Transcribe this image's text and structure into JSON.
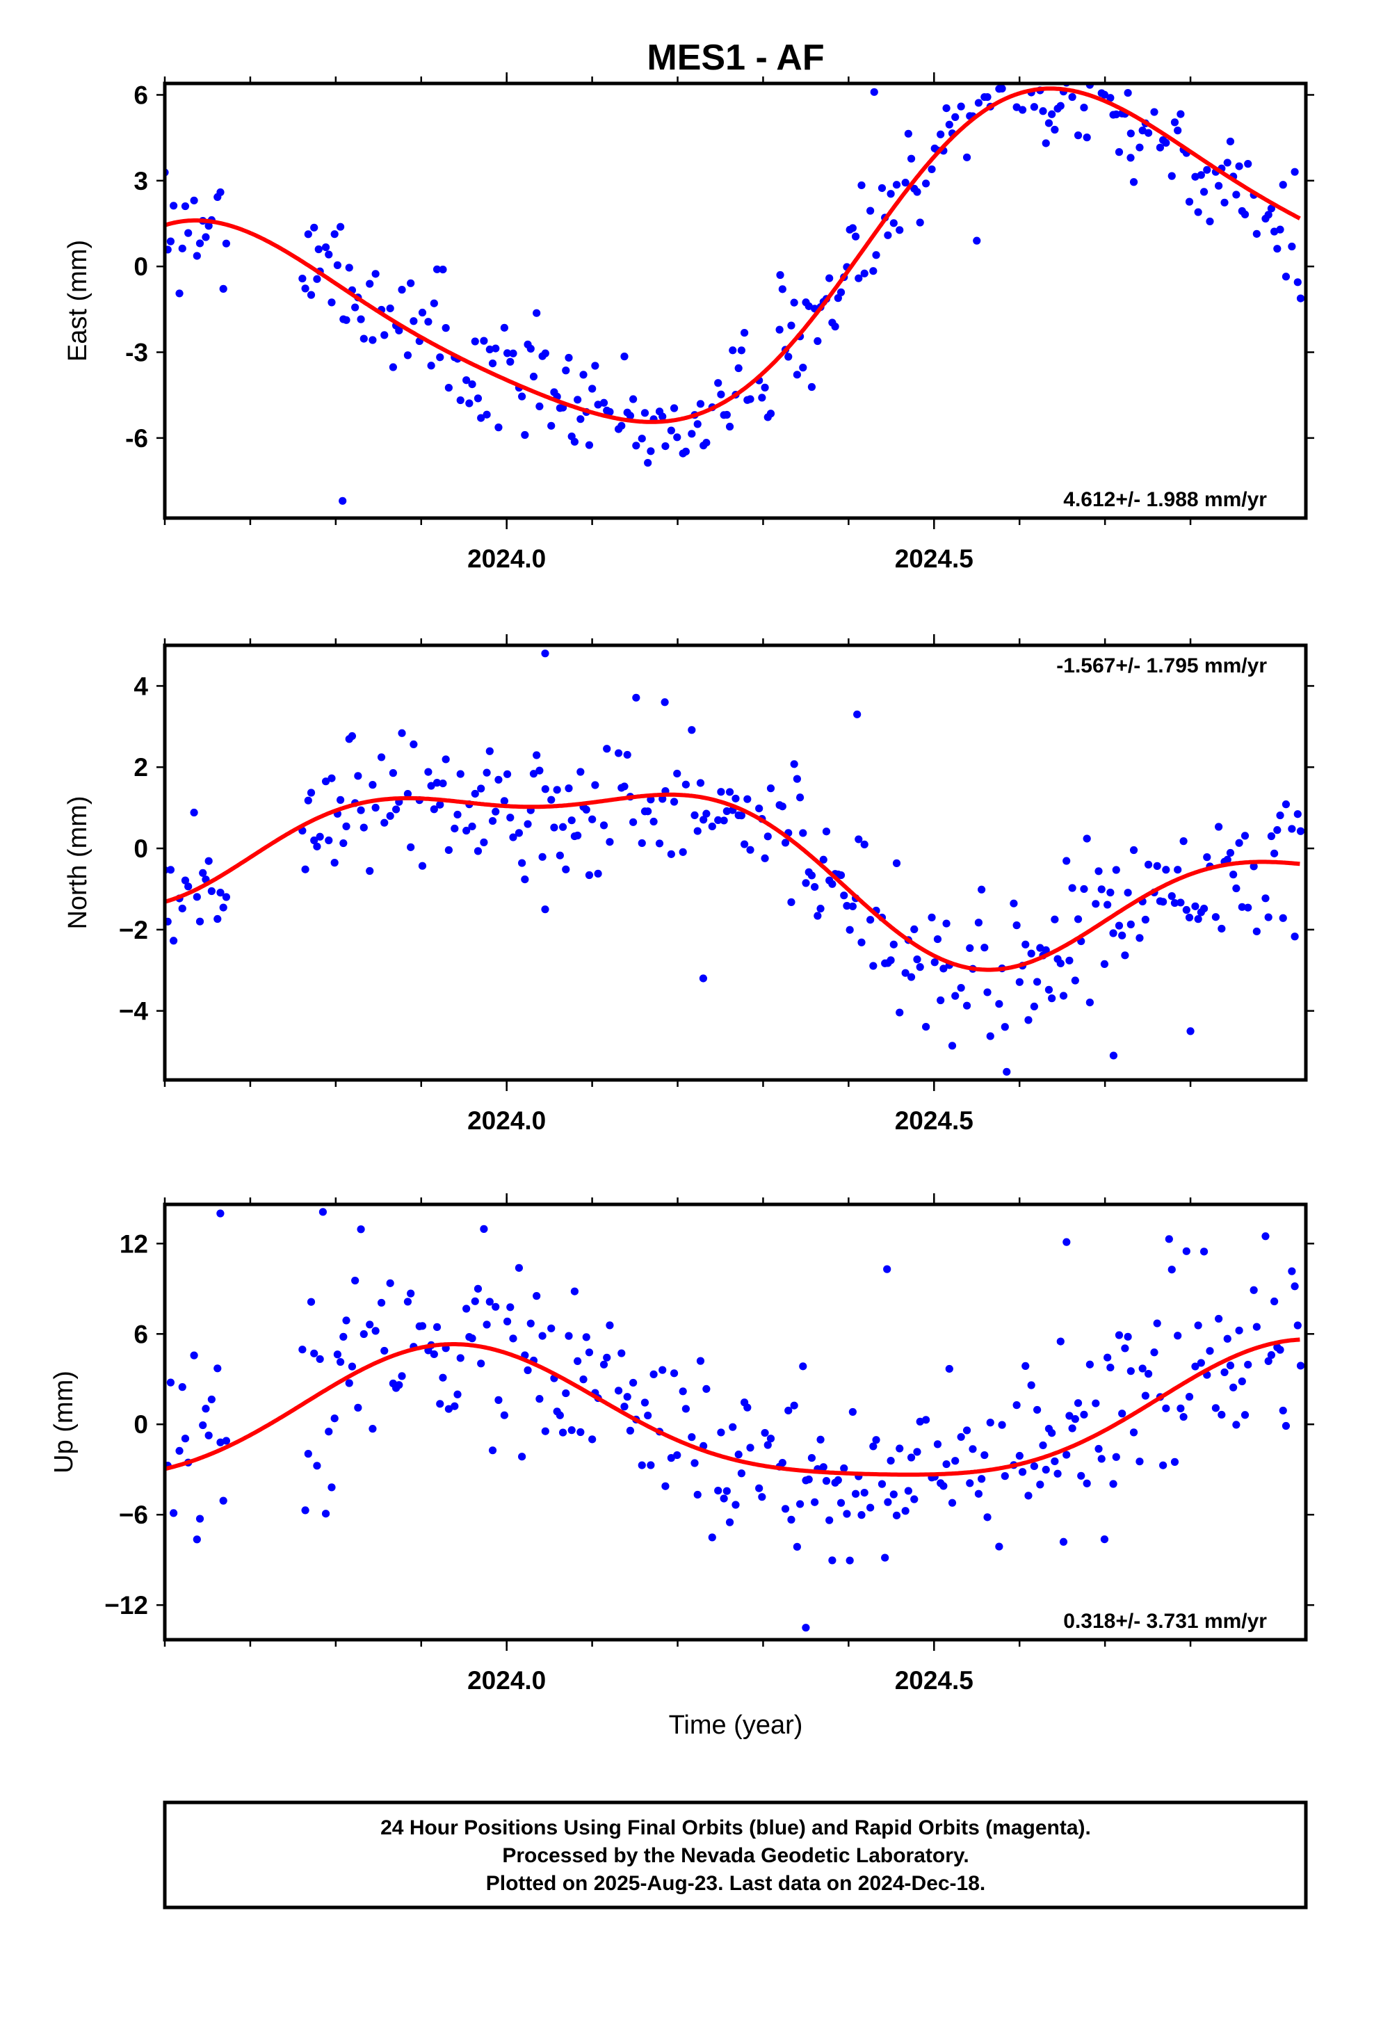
{
  "chart_data": {
    "title": "MES1 - AF",
    "xlabel": "Time (year)",
    "xlim": [
      2023.6,
      2024.935
    ],
    "x_ticks": [
      2024.0,
      2024.5
    ],
    "x_tick_labels": [
      "2024.0",
      "2024.5"
    ],
    "colors": {
      "points": "#0000ff",
      "fit": "#ff0000"
    },
    "panels": [
      {
        "type": "scatter",
        "component": "east",
        "ylabel": "East (mm)",
        "ylim": [
          -8.8,
          6.4
        ],
        "yticks": [
          -6,
          -3,
          0,
          3,
          6
        ],
        "ytick_labels": [
          "-6",
          "-3",
          "0",
          "3",
          "6"
        ],
        "rate_label": "4.612+/- 1.988 mm/yr",
        "rate_position": "bottom-right",
        "fit": {
          "mean": -0.57,
          "trend": 4.612,
          "sin": -3.75,
          "cos": -2.75,
          "sin2": 0.45,
          "cos2": 0.5
        },
        "noise": 1.0,
        "outliers": [
          [
            2023.808,
            -8.2
          ],
          [
            2024.43,
            6.1
          ],
          [
            2024.73,
            3.8
          ],
          [
            2024.55,
            0.9
          ],
          [
            2023.78,
            0.6
          ],
          [
            2024.32,
            -0.3
          ]
        ]
      },
      {
        "type": "scatter",
        "component": "north",
        "ylabel": "North (mm)",
        "ylim": [
          -5.7,
          5.0
        ],
        "yticks": [
          -4,
          -2,
          0,
          2,
          4
        ],
        "ytick_labels": [
          "−4",
          "−2",
          "0",
          "2",
          "4"
        ],
        "rate_label": "-1.567+/- 1.795 mm/yr",
        "rate_position": "top-right",
        "fit": {
          "mean": -0.2,
          "trend": -1.567,
          "sin": 0.75,
          "cos": 1.45,
          "sin2": -0.35,
          "cos2": -0.6
        },
        "noise": 0.85,
        "outliers": [
          [
            2024.045,
            4.8
          ],
          [
            2024.185,
            3.6
          ],
          [
            2024.41,
            3.3
          ],
          [
            2024.585,
            -5.5
          ],
          [
            2024.71,
            -5.1
          ],
          [
            2024.23,
            -3.2
          ],
          [
            2024.8,
            -4.5
          ],
          [
            2024.045,
            -1.5
          ]
        ]
      },
      {
        "type": "scatter",
        "component": "up",
        "ylabel": "Up (mm)",
        "ylim": [
          -14.3,
          14.6
        ],
        "yticks": [
          -12,
          -6,
          0,
          6,
          12
        ],
        "ytick_labels": [
          "−12",
          "−6",
          "0",
          "6",
          "12"
        ],
        "rate_label": "0.318+/- 3.731 mm/yr",
        "rate_position": "bottom-right",
        "fit": {
          "mean": 0.1,
          "trend": 0.318,
          "sin": -1.6,
          "cos": 4.1,
          "sin2": -0.7,
          "cos2": 0.6
        },
        "noise": 3.1,
        "outliers": [
          [
            2023.665,
            14.0
          ],
          [
            2023.785,
            14.1
          ],
          [
            2024.35,
            -13.5
          ],
          [
            2024.655,
            12.1
          ],
          [
            2024.775,
            12.3
          ],
          [
            2024.445,
            10.3
          ]
        ]
      }
    ],
    "footer_lines": [
      "24 Hour Positions Using Final Orbits (blue) and Rapid Orbits (magenta).",
      "Processed by the Nevada Geodetic Laboratory.",
      "Plotted on 2025-Aug-23. Last data on 2024-Dec-18."
    ]
  }
}
